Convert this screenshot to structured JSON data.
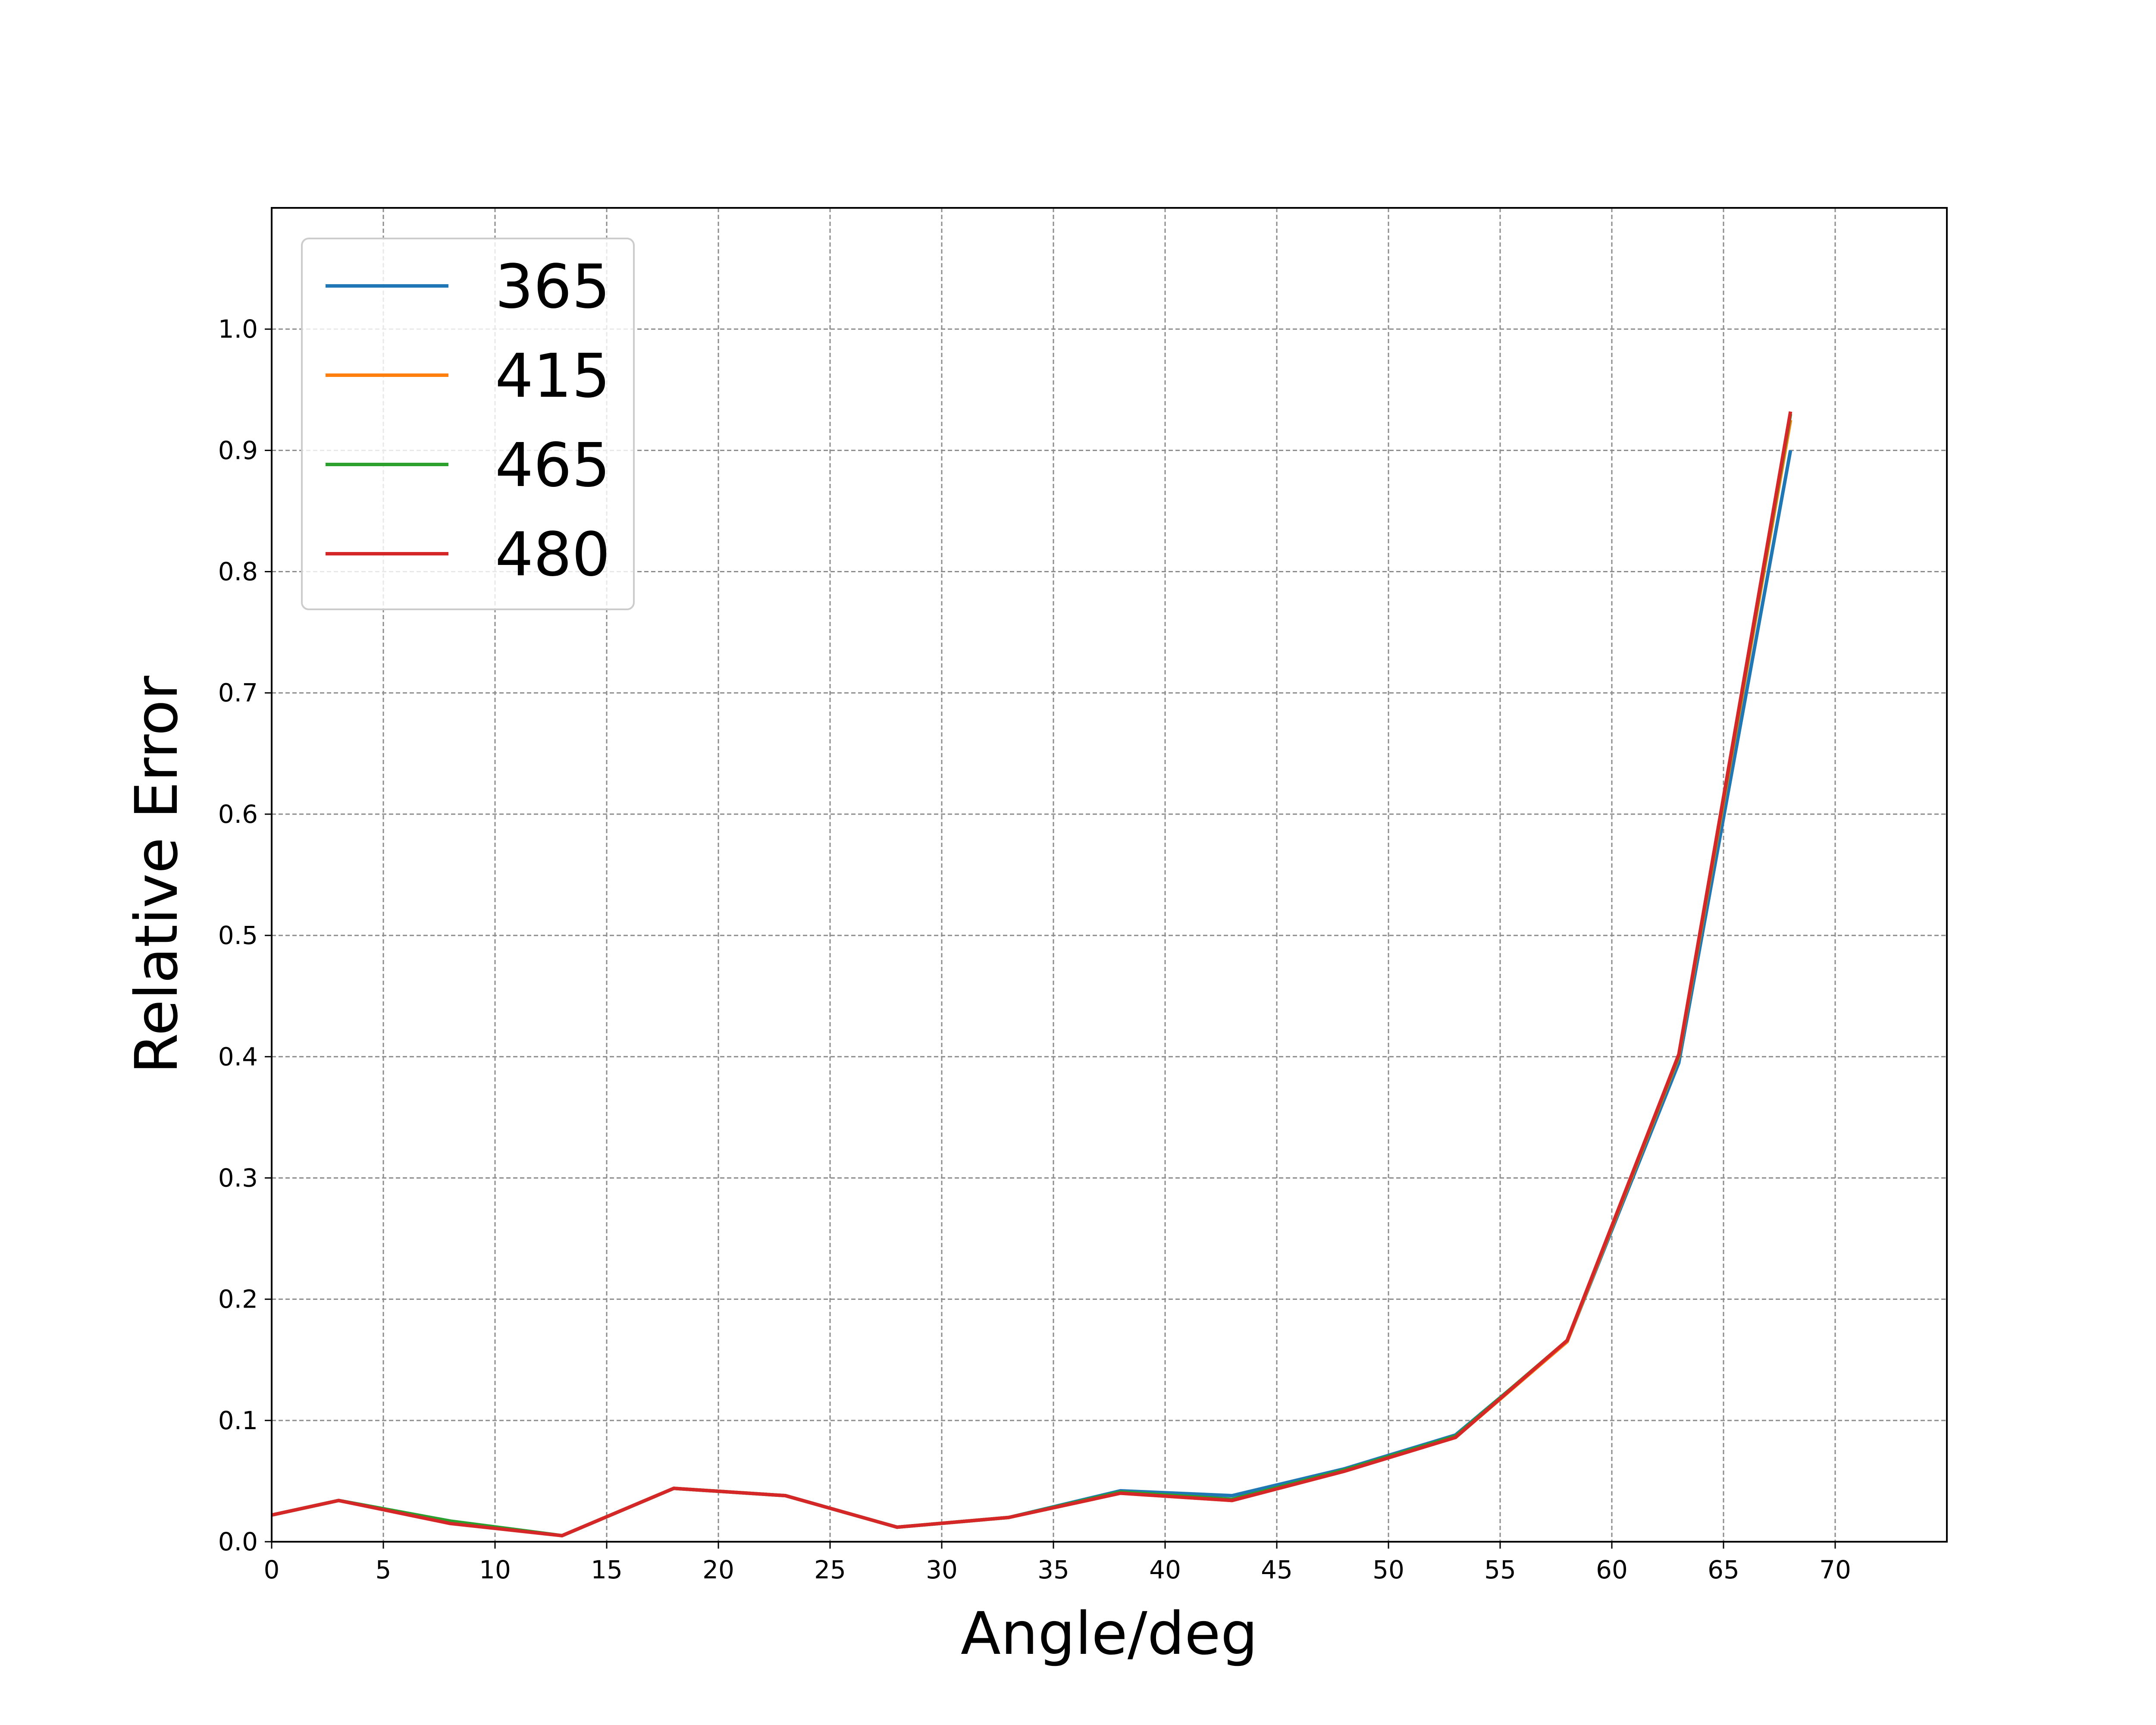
{
  "chart_data": {
    "type": "line",
    "title": "",
    "xlabel": "Angle/deg",
    "ylabel": "Relative Error",
    "xlim": [
      0,
      75
    ],
    "ylim": [
      0,
      1.1
    ],
    "xticks": [
      0,
      5,
      10,
      15,
      20,
      25,
      30,
      35,
      40,
      45,
      50,
      55,
      60,
      65,
      70
    ],
    "yticks": [
      0.0,
      0.1,
      0.2,
      0.3,
      0.4,
      0.5,
      0.6,
      0.7,
      0.8,
      0.9,
      1.0
    ],
    "xtick_labels": [
      "0",
      "5",
      "10",
      "15",
      "20",
      "25",
      "30",
      "35",
      "40",
      "45",
      "50",
      "55",
      "60",
      "65",
      "70"
    ],
    "ytick_labels": [
      "0.0",
      "0.1",
      "0.2",
      "0.3",
      "0.4",
      "0.5",
      "0.6",
      "0.7",
      "0.8",
      "0.9",
      "1.0"
    ],
    "grid": true,
    "legend_position": "top-left",
    "x": [
      0,
      3,
      8,
      13,
      18,
      23,
      28,
      33,
      38,
      43,
      48,
      53,
      58,
      63,
      68
    ],
    "series": [
      {
        "name": "365",
        "color": "#1f77b4",
        "values": [
          0.022,
          0.034,
          0.017,
          0.005,
          0.044,
          0.038,
          0.012,
          0.02,
          0.042,
          0.038,
          0.06,
          0.088,
          0.165,
          0.395,
          0.9
        ]
      },
      {
        "name": "415",
        "color": "#ff7f0e",
        "values": [
          0.022,
          0.034,
          0.016,
          0.005,
          0.044,
          0.038,
          0.012,
          0.02,
          0.04,
          0.034,
          0.058,
          0.086,
          0.165,
          0.4,
          0.925
        ]
      },
      {
        "name": "465",
        "color": "#2ca02c",
        "values": [
          0.022,
          0.034,
          0.017,
          0.005,
          0.044,
          0.038,
          0.012,
          0.02,
          0.041,
          0.035,
          0.059,
          0.087,
          0.166,
          0.401,
          0.93
        ]
      },
      {
        "name": "480",
        "color": "#d62728",
        "values": [
          0.022,
          0.034,
          0.015,
          0.005,
          0.044,
          0.038,
          0.012,
          0.02,
          0.04,
          0.034,
          0.058,
          0.086,
          0.166,
          0.402,
          0.932
        ]
      }
    ]
  }
}
